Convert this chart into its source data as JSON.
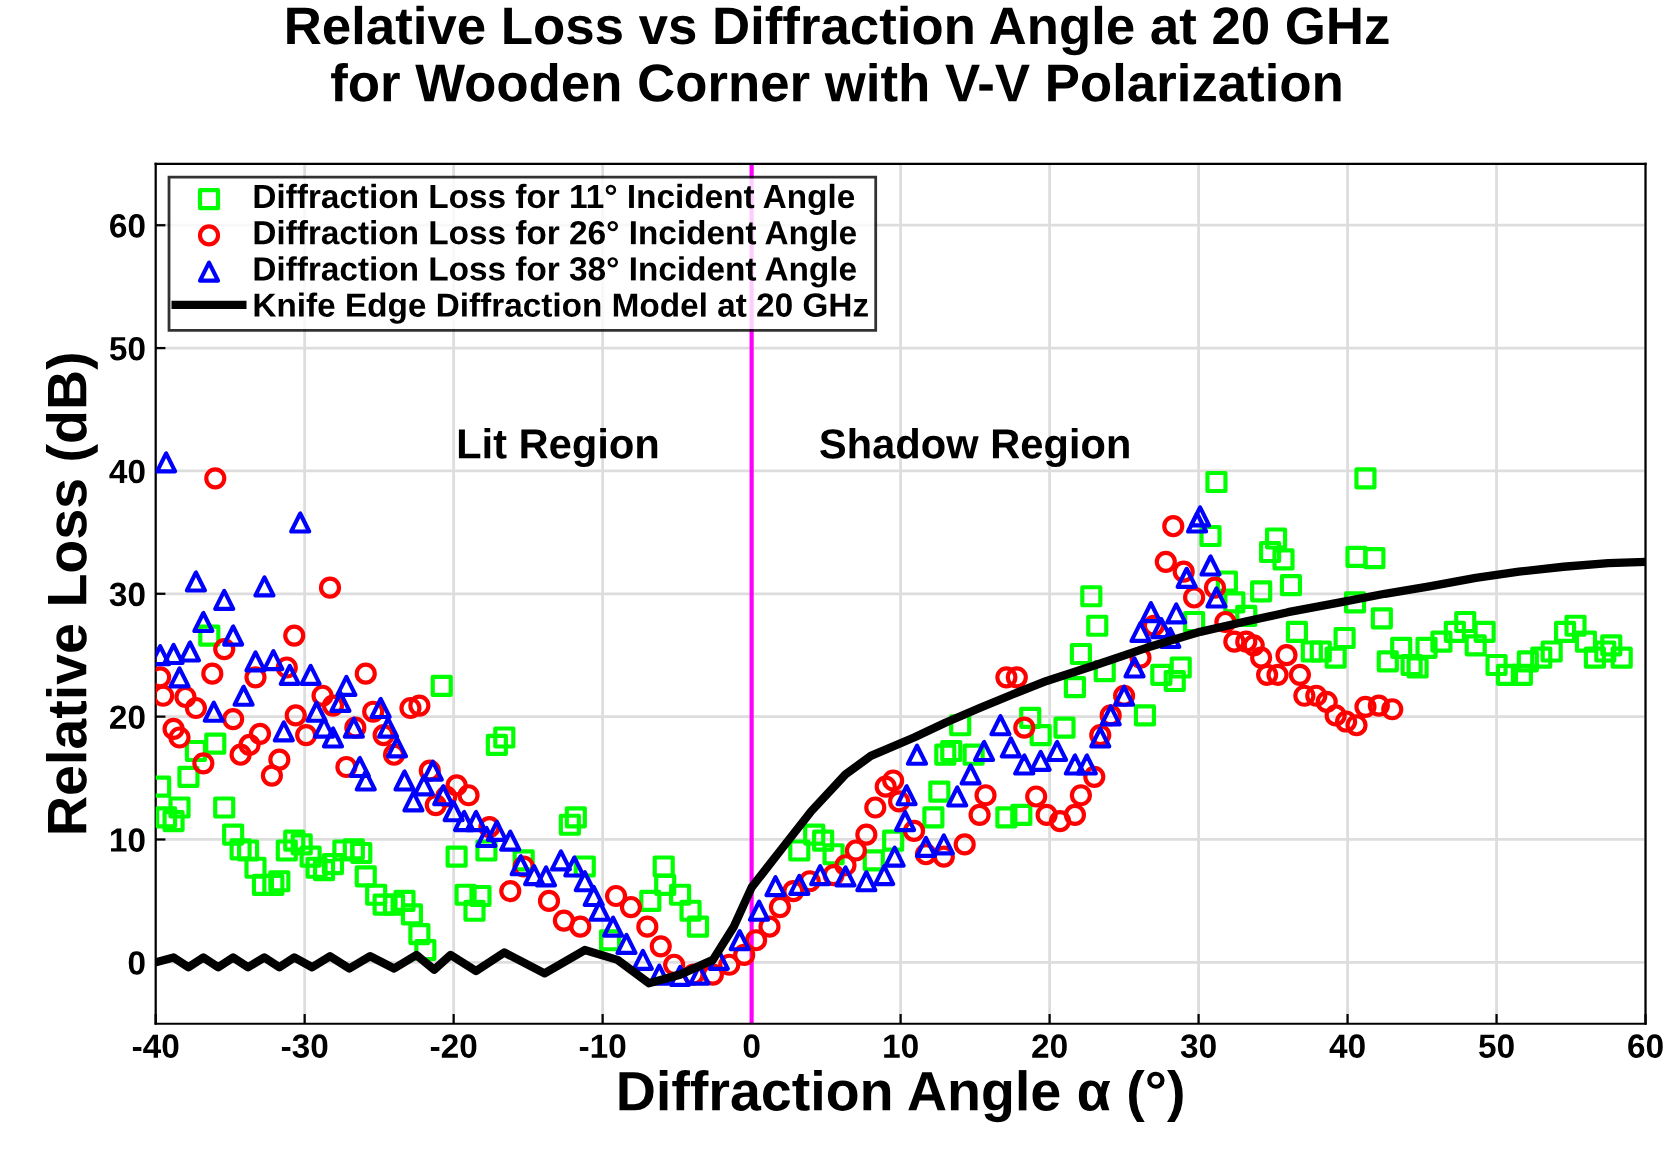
{
  "chart_data": {
    "type": "scatter",
    "title": "Relative Loss vs Diffraction Angle at 20 GHz\nfor Wooden Corner with V-V Polarization",
    "xlabel": "Diffraction Angle α (°)",
    "ylabel": "Relative Loss (dB)",
    "xlim": [
      -40,
      60
    ],
    "ylim": [
      -5,
      65
    ],
    "xticks": [
      -40,
      -30,
      -20,
      -10,
      0,
      10,
      20,
      30,
      40,
      50,
      60
    ],
    "yticks": [
      0,
      10,
      20,
      30,
      40,
      50,
      60
    ],
    "grid": true,
    "legend": "top left",
    "ref_lines": [
      {
        "axis": "x",
        "value": 0,
        "color": "#ff00ff"
      }
    ],
    "annotations": [
      "Lit Region",
      "Shadow Region"
    ],
    "series": [
      {
        "name": "Diffraction Loss for 11° Incident Angle",
        "marker": "square",
        "color": "#00ff00",
        "x": [
          -39.7,
          -39.3,
          -38.8,
          -38.4,
          -37.8,
          -37.3,
          -36.4,
          -36,
          -35.4,
          -34.8,
          -34.3,
          -33.8,
          -33.3,
          -32.8,
          -32.1,
          -31.7,
          -31.2,
          -30.7,
          -30.2,
          -29.6,
          -29.2,
          -28.7,
          -28.1,
          -27.4,
          -26.7,
          -26.2,
          -25.9,
          -25.2,
          -24.7,
          -24,
          -23.3,
          -22.8,
          -22.3,
          -21.9,
          -20.8,
          -19.8,
          -19.2,
          -18.6,
          -18.2,
          -17.8,
          -17.1,
          -16.6,
          -15.3,
          -12.2,
          -11.8,
          -11.2,
          -9.5,
          -6.8,
          -5.9,
          -5.8,
          -4.8,
          -4.1,
          -3.6,
          3.2,
          4.2,
          4.8,
          5.5,
          8.2,
          9.5,
          12.2,
          12.6,
          13,
          13.4,
          14,
          14.9,
          17.1,
          18.1,
          18.7,
          19.4,
          21,
          21.7,
          22.1,
          22.8,
          23.2,
          23.7,
          26.4,
          27.5,
          28.4,
          28.8,
          29.7,
          30.8,
          31.2,
          31.9,
          32.4,
          33.2,
          34.2,
          34.8,
          35.2,
          35.7,
          36.2,
          36.6,
          37.6,
          38.2,
          39.2,
          39.8,
          40.5,
          40.6,
          41.2,
          41.8,
          42.3,
          42.7,
          43.6,
          44.3,
          44.7,
          45.3,
          46.3,
          47.2,
          47.9,
          48.6,
          49.2,
          50,
          50.7,
          51.7,
          52.1,
          53,
          53.7,
          54.6,
          55.3,
          56,
          56.6,
          57.3,
          57.7,
          58.4
        ],
        "values": [
          14.3,
          11.8,
          11.5,
          12.6,
          15.1,
          17.2,
          26.6,
          17.8,
          12.6,
          10.4,
          9.2,
          9.1,
          7.7,
          6.3,
          6.3,
          6.6,
          9.1,
          9.9,
          9.6,
          8.6,
          7.7,
          7.5,
          8,
          9.1,
          9.2,
          8.9,
          7,
          5.5,
          4.7,
          4.7,
          5,
          3.9,
          2.3,
          1,
          22.5,
          8.6,
          5.5,
          4.2,
          5.4,
          9.1,
          17.7,
          18.3,
          8.3,
          11.2,
          11.8,
          7.8,
          1.8,
          5,
          7.8,
          6.3,
          5.5,
          4.2,
          2.9,
          9.1,
          10.4,
          9.9,
          8.8,
          8.3,
          9.9,
          11.8,
          13.9,
          16.9,
          17.2,
          19.3,
          16.9,
          11.8,
          12,
          19.9,
          18.5,
          19.1,
          22.4,
          25.1,
          29.8,
          27.4,
          23.7,
          20.1,
          23.4,
          22.9,
          24,
          27.7,
          34.7,
          39.1,
          31,
          29.3,
          28.2,
          30.2,
          33.4,
          34.5,
          32.8,
          30.7,
          26.9,
          25.3,
          25.3,
          24.8,
          26.4,
          29.3,
          33,
          39.4,
          32.9,
          28,
          24.5,
          25.6,
          24.2,
          24,
          25.6,
          26.1,
          26.9,
          27.7,
          25.8,
          26.9,
          24.2,
          23.4,
          23.4,
          24.5,
          24.8,
          25.3,
          26.9,
          27.4,
          26.1,
          24.8,
          25.3,
          25.8,
          24.8
        ]
      },
      {
        "name": "Diffraction Loss for 26° Incident Angle",
        "marker": "circle",
        "color": "#ff0000",
        "x": [
          -39.7,
          -39.5,
          -38.8,
          -38.4,
          -38,
          -37.3,
          -36.8,
          -36.2,
          -36,
          -35.4,
          -34.8,
          -34.3,
          -33.7,
          -33.3,
          -33,
          -32.2,
          -31.7,
          -31.2,
          -30.7,
          -30.6,
          -29.9,
          -28.8,
          -28.3,
          -28.1,
          -27.2,
          -26.6,
          -25.9,
          -25.4,
          -24.7,
          -24,
          -22.9,
          -22.3,
          -21.6,
          -21.2,
          -20.5,
          -19.8,
          -19,
          -17.6,
          -16.2,
          -15.3,
          -13.6,
          -12.6,
          -11.5,
          -9.1,
          -8.1,
          -7,
          -6.1,
          -5.2,
          -3.9,
          -2.6,
          -1.5,
          -0.5,
          0.3,
          1.2,
          1.9,
          2.8,
          3.9,
          5.5,
          6.3,
          7,
          7.7,
          8.3,
          9,
          9.5,
          9.9,
          10.9,
          11.7,
          12.9,
          14.3,
          15.3,
          15.7,
          17.1,
          17.8,
          18.3,
          19.1,
          19.8,
          20.7,
          21.7,
          22.1,
          23,
          23.4,
          24.1,
          25,
          26.1,
          27,
          27.8,
          28.3,
          29,
          29.7,
          31.1,
          31.8,
          32.4,
          33.2,
          33.7,
          34.2,
          34.6,
          35.3,
          35.9,
          36.8,
          37.1,
          37.9,
          38.6,
          39.2,
          39.9,
          40.6,
          41.2,
          42.1,
          43
        ],
        "values": [
          23.2,
          21.7,
          19,
          18.3,
          21.6,
          20.7,
          16.2,
          23.5,
          39.4,
          25.5,
          19.8,
          16.9,
          17.7,
          23.2,
          18.6,
          15.2,
          16.5,
          24,
          26.6,
          20.1,
          18.5,
          21.7,
          30.5,
          20.9,
          15.9,
          19.1,
          23.5,
          20.4,
          18.5,
          16.9,
          20.7,
          20.9,
          15.6,
          12.8,
          13.5,
          14.4,
          13.6,
          11,
          5.8,
          7.8,
          5,
          3.4,
          2.9,
          5.4,
          4.5,
          2.9,
          1.3,
          -0.2,
          -1,
          -1,
          -0.2,
          0.6,
          1.8,
          2.9,
          4.5,
          5.8,
          6.6,
          7.1,
          7.9,
          9.1,
          10.4,
          12.6,
          14.3,
          14.8,
          13.1,
          10.7,
          8.8,
          8.6,
          9.6,
          12,
          13.6,
          23.2,
          23.2,
          19.1,
          13.5,
          12,
          11.5,
          12,
          13.6,
          15.1,
          18.5,
          20.1,
          21.7,
          24.8,
          27.4,
          32.6,
          35.5,
          31.8,
          29.7,
          30.5,
          27.7,
          26.1,
          26.1,
          25.8,
          24.8,
          23.4,
          23.4,
          25,
          23.4,
          21.7,
          21.7,
          21.2,
          20.1,
          19.6,
          19.3,
          20.8,
          20.9,
          20.6
        ]
      },
      {
        "name": "Diffraction Loss for 38° Incident Angle",
        "marker": "triangle",
        "color": "#0000ff",
        "x": [
          -39.7,
          -39.3,
          -38.8,
          -38.4,
          -37.7,
          -37.3,
          -36.8,
          -36.1,
          -35.4,
          -34.8,
          -34.1,
          -33.3,
          -32.7,
          -32.1,
          -31.4,
          -31,
          -30.3,
          -29.6,
          -29.2,
          -28.7,
          -28.1,
          -27.6,
          -27.2,
          -26.7,
          -26.3,
          -25.9,
          -24.9,
          -24.4,
          -23.8,
          -23.3,
          -22.7,
          -22,
          -21.4,
          -20.7,
          -20,
          -19.3,
          -18.5,
          -17.8,
          -17.1,
          -16.2,
          -15.5,
          -14.6,
          -13.8,
          -12.8,
          -11.9,
          -11.2,
          -10.6,
          -10.2,
          -9.3,
          -8.4,
          -7.3,
          -6.2,
          -4.8,
          -3.5,
          -2.2,
          -0.8,
          0.5,
          1.6,
          3.2,
          4.6,
          6.3,
          7.7,
          8.9,
          9.6,
          10.3,
          10.4,
          11.1,
          11.7,
          12.9,
          13.8,
          14.7,
          15.6,
          16.7,
          17.4,
          18.3,
          19.4,
          20.5,
          21.7,
          22.5,
          23.4,
          24.1,
          25,
          25.7,
          26.1,
          26.8,
          27.5,
          28.1,
          28.5,
          29.2,
          29.9,
          30.1,
          30.8,
          31.2
        ],
        "values": [
          25,
          40.7,
          25.1,
          23.2,
          25.3,
          31,
          27.7,
          20.4,
          29.5,
          26.6,
          21.7,
          24.5,
          30.6,
          24.6,
          18.8,
          23.4,
          35.8,
          23.4,
          20.4,
          19.1,
          18.3,
          21.2,
          22.5,
          19.1,
          15.9,
          14.8,
          20.7,
          19.1,
          17.5,
          14.8,
          13.1,
          14.4,
          15.6,
          13.6,
          12.3,
          11.5,
          11.5,
          10.2,
          10.7,
          9.9,
          7.9,
          7.1,
          7,
          8.3,
          7.8,
          6.6,
          5.4,
          4.2,
          2.9,
          1.5,
          0.2,
          -1,
          -1.1,
          -1,
          0.2,
          1.8,
          4.2,
          6.2,
          6.3,
          7.1,
          7,
          6.6,
          7.1,
          8.6,
          11.5,
          13.6,
          16.9,
          9.4,
          9.6,
          13.5,
          15.3,
          17.2,
          19.3,
          17.5,
          16.1,
          16.4,
          17.2,
          16.1,
          16.1,
          18.3,
          20.1,
          21.7,
          24,
          26.9,
          28.5,
          27.2,
          26.4,
          28.4,
          31.3,
          35.8,
          36.3,
          32.3,
          29.7
        ]
      },
      {
        "name": "Knife Edge Diffraction Model at 20 GHz",
        "type": "line",
        "marker": "none",
        "line_style": "solid",
        "color": "#000000",
        "x": [
          -40,
          -38.8,
          -37.8,
          -36.8,
          -35.8,
          -34.8,
          -33.8,
          -32.7,
          -31.7,
          -30.7,
          -29.5,
          -28.3,
          -27,
          -25.6,
          -24,
          -22.5,
          -21.3,
          -20.2,
          -18.5,
          -16.6,
          -13.9,
          -11.2,
          -9,
          -6.9,
          -4.8,
          -2.6,
          -1.2,
          0,
          2,
          4,
          6.3,
          8,
          10.9,
          13,
          15.3,
          17.5,
          19.8,
          23.1,
          26.5,
          30.1,
          33,
          36,
          39.5,
          42.5,
          45.5,
          48.6,
          51.5,
          54.5,
          57.5,
          60
        ],
        "values": [
          0,
          0.4,
          -0.4,
          0.4,
          -0.4,
          0.4,
          -0.4,
          0.4,
          -0.4,
          0.4,
          -0.4,
          0.5,
          -0.5,
          0.5,
          -0.5,
          0.6,
          -0.6,
          0.6,
          -0.7,
          0.8,
          -0.9,
          1,
          0.2,
          -1.7,
          -1,
          0.2,
          2.9,
          6.1,
          9.2,
          12.3,
          15.3,
          16.8,
          18.3,
          19.5,
          20.7,
          21.8,
          22.9,
          24.2,
          25.6,
          26.9,
          27.7,
          28.5,
          29.3,
          30,
          30.6,
          31.3,
          31.8,
          32.2,
          32.5,
          32.6
        ]
      }
    ]
  }
}
